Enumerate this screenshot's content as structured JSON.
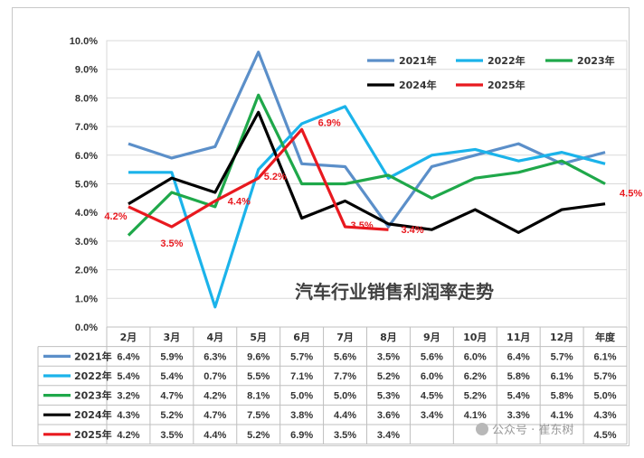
{
  "chart_data": {
    "type": "line",
    "title": "汽车行业销售利润率走势",
    "categories": [
      "2月",
      "3月",
      "4月",
      "5月",
      "6月",
      "7月",
      "8月",
      "9月",
      "10月",
      "11月",
      "12月",
      "年度"
    ],
    "ylim": [
      0,
      10
    ],
    "yticks": [
      "0.0%",
      "1.0%",
      "2.0%",
      "3.0%",
      "4.0%",
      "5.0%",
      "6.0%",
      "7.0%",
      "8.0%",
      "9.0%",
      "10.0%"
    ],
    "grid": true,
    "legend_position": "top-right",
    "series": [
      {
        "name": "2021年",
        "color": "#5b8fc9",
        "values": [
          6.4,
          5.9,
          6.3,
          9.6,
          5.7,
          5.6,
          3.5,
          5.6,
          6.0,
          6.4,
          5.7,
          6.1
        ],
        "labels": [
          "6.4%",
          "5.9%",
          "6.3%",
          "9.6%",
          "5.7%",
          "5.6%",
          "3.5%",
          "5.6%",
          "6.0%",
          "6.4%",
          "5.7%",
          "6.1%"
        ]
      },
      {
        "name": "2022年",
        "color": "#1bb3ea",
        "values": [
          5.4,
          5.4,
          0.7,
          5.5,
          7.1,
          7.7,
          5.2,
          6.0,
          6.2,
          5.8,
          6.1,
          5.7
        ],
        "labels": [
          "5.4%",
          "5.4%",
          "0.7%",
          "5.5%",
          "7.1%",
          "7.7%",
          "5.2%",
          "6.0%",
          "6.2%",
          "5.8%",
          "6.1%",
          "5.7%"
        ]
      },
      {
        "name": "2023年",
        "color": "#1fa84a",
        "values": [
          3.2,
          4.7,
          4.2,
          8.1,
          5.0,
          5.0,
          5.3,
          4.5,
          5.2,
          5.4,
          5.8,
          5.0
        ],
        "labels": [
          "3.2%",
          "4.7%",
          "4.2%",
          "8.1%",
          "5.0%",
          "5.0%",
          "5.3%",
          "4.5%",
          "5.2%",
          "5.4%",
          "5.8%",
          "5.0%"
        ]
      },
      {
        "name": "2024年",
        "color": "#000000",
        "values": [
          4.3,
          5.2,
          4.7,
          7.5,
          3.8,
          4.4,
          3.6,
          3.4,
          4.1,
          3.3,
          4.1,
          4.3
        ],
        "labels": [
          "4.3%",
          "5.2%",
          "4.7%",
          "7.5%",
          "3.8%",
          "4.4%",
          "3.6%",
          "3.4%",
          "4.1%",
          "3.3%",
          "4.1%",
          "4.3%"
        ]
      },
      {
        "name": "2025年",
        "color": "#e8191f",
        "values": [
          4.2,
          3.5,
          4.4,
          5.2,
          6.9,
          3.5,
          3.4,
          null,
          null,
          null,
          null,
          4.5
        ],
        "labels": [
          "4.2%",
          "3.5%",
          "4.4%",
          "5.2%",
          "6.9%",
          "3.5%",
          "3.4%",
          "",
          "",
          "",
          "",
          "4.5%"
        ]
      }
    ],
    "annotations": [
      {
        "series": 4,
        "index": 0,
        "text": "4.2%"
      },
      {
        "series": 4,
        "index": 1,
        "text": "3.5%"
      },
      {
        "series": 4,
        "index": 2,
        "text": "4.4%"
      },
      {
        "series": 4,
        "index": 3,
        "text": "5.2%"
      },
      {
        "series": 4,
        "index": 4,
        "text": "6.9%"
      },
      {
        "series": 4,
        "index": 5,
        "text": "3.5%"
      },
      {
        "series": 4,
        "index": 6,
        "text": "3.4%"
      },
      {
        "series": 4,
        "index": 11,
        "text": "4.5%"
      }
    ]
  },
  "watermark": "公众号 · 崔东树"
}
